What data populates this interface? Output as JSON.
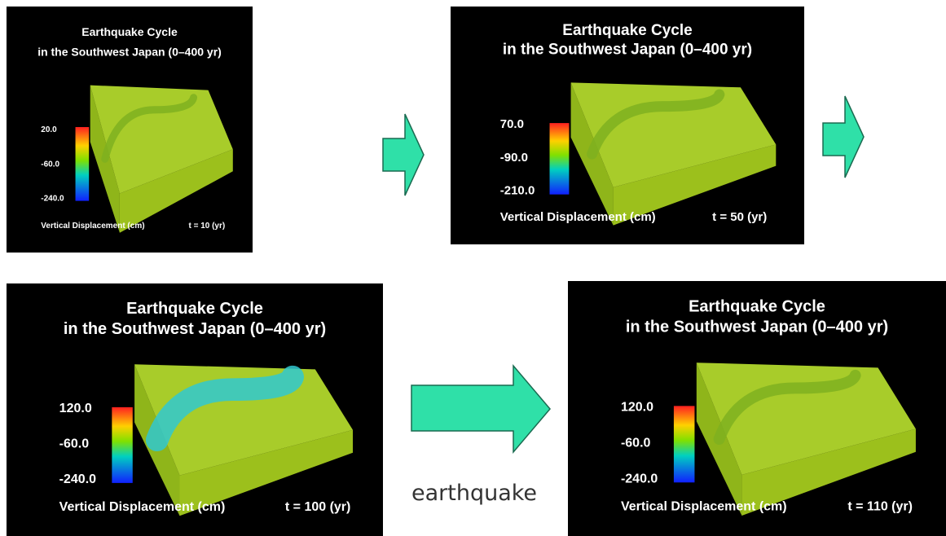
{
  "panels": [
    {
      "title_line1": "Earthquake Cycle",
      "title_line2": "in the Southwest Japan (0–400 yr)",
      "colorbar_labels": [
        "20.0",
        "-60.0",
        "-240.0"
      ],
      "axis_label": "Vertical Displacement (cm)",
      "time_label": "t = 10 (yr)"
    },
    {
      "title_line1": "Earthquake Cycle",
      "title_line2": "in the Southwest Japan (0–400 yr)",
      "colorbar_labels": [
        "70.0",
        "-90.0",
        "-210.0"
      ],
      "axis_label": "Vertical Displacement (cm)",
      "time_label": "t = 50 (yr)"
    },
    {
      "title_line1": "Earthquake Cycle",
      "title_line2": "in the Southwest Japan (0–400 yr)",
      "colorbar_labels": [
        "120.0",
        "-60.0",
        "-240.0"
      ],
      "axis_label": "Vertical Displacement (cm)",
      "time_label": "t = 100 (yr)"
    },
    {
      "title_line1": "Earthquake Cycle",
      "title_line2": "in the Southwest Japan (0–400 yr)",
      "colorbar_labels": [
        "120.0",
        "-60.0",
        "-240.0"
      ],
      "axis_label": "Vertical Displacement (cm)",
      "time_label": "t = 110 (yr)"
    }
  ],
  "caption": "earthquake"
}
